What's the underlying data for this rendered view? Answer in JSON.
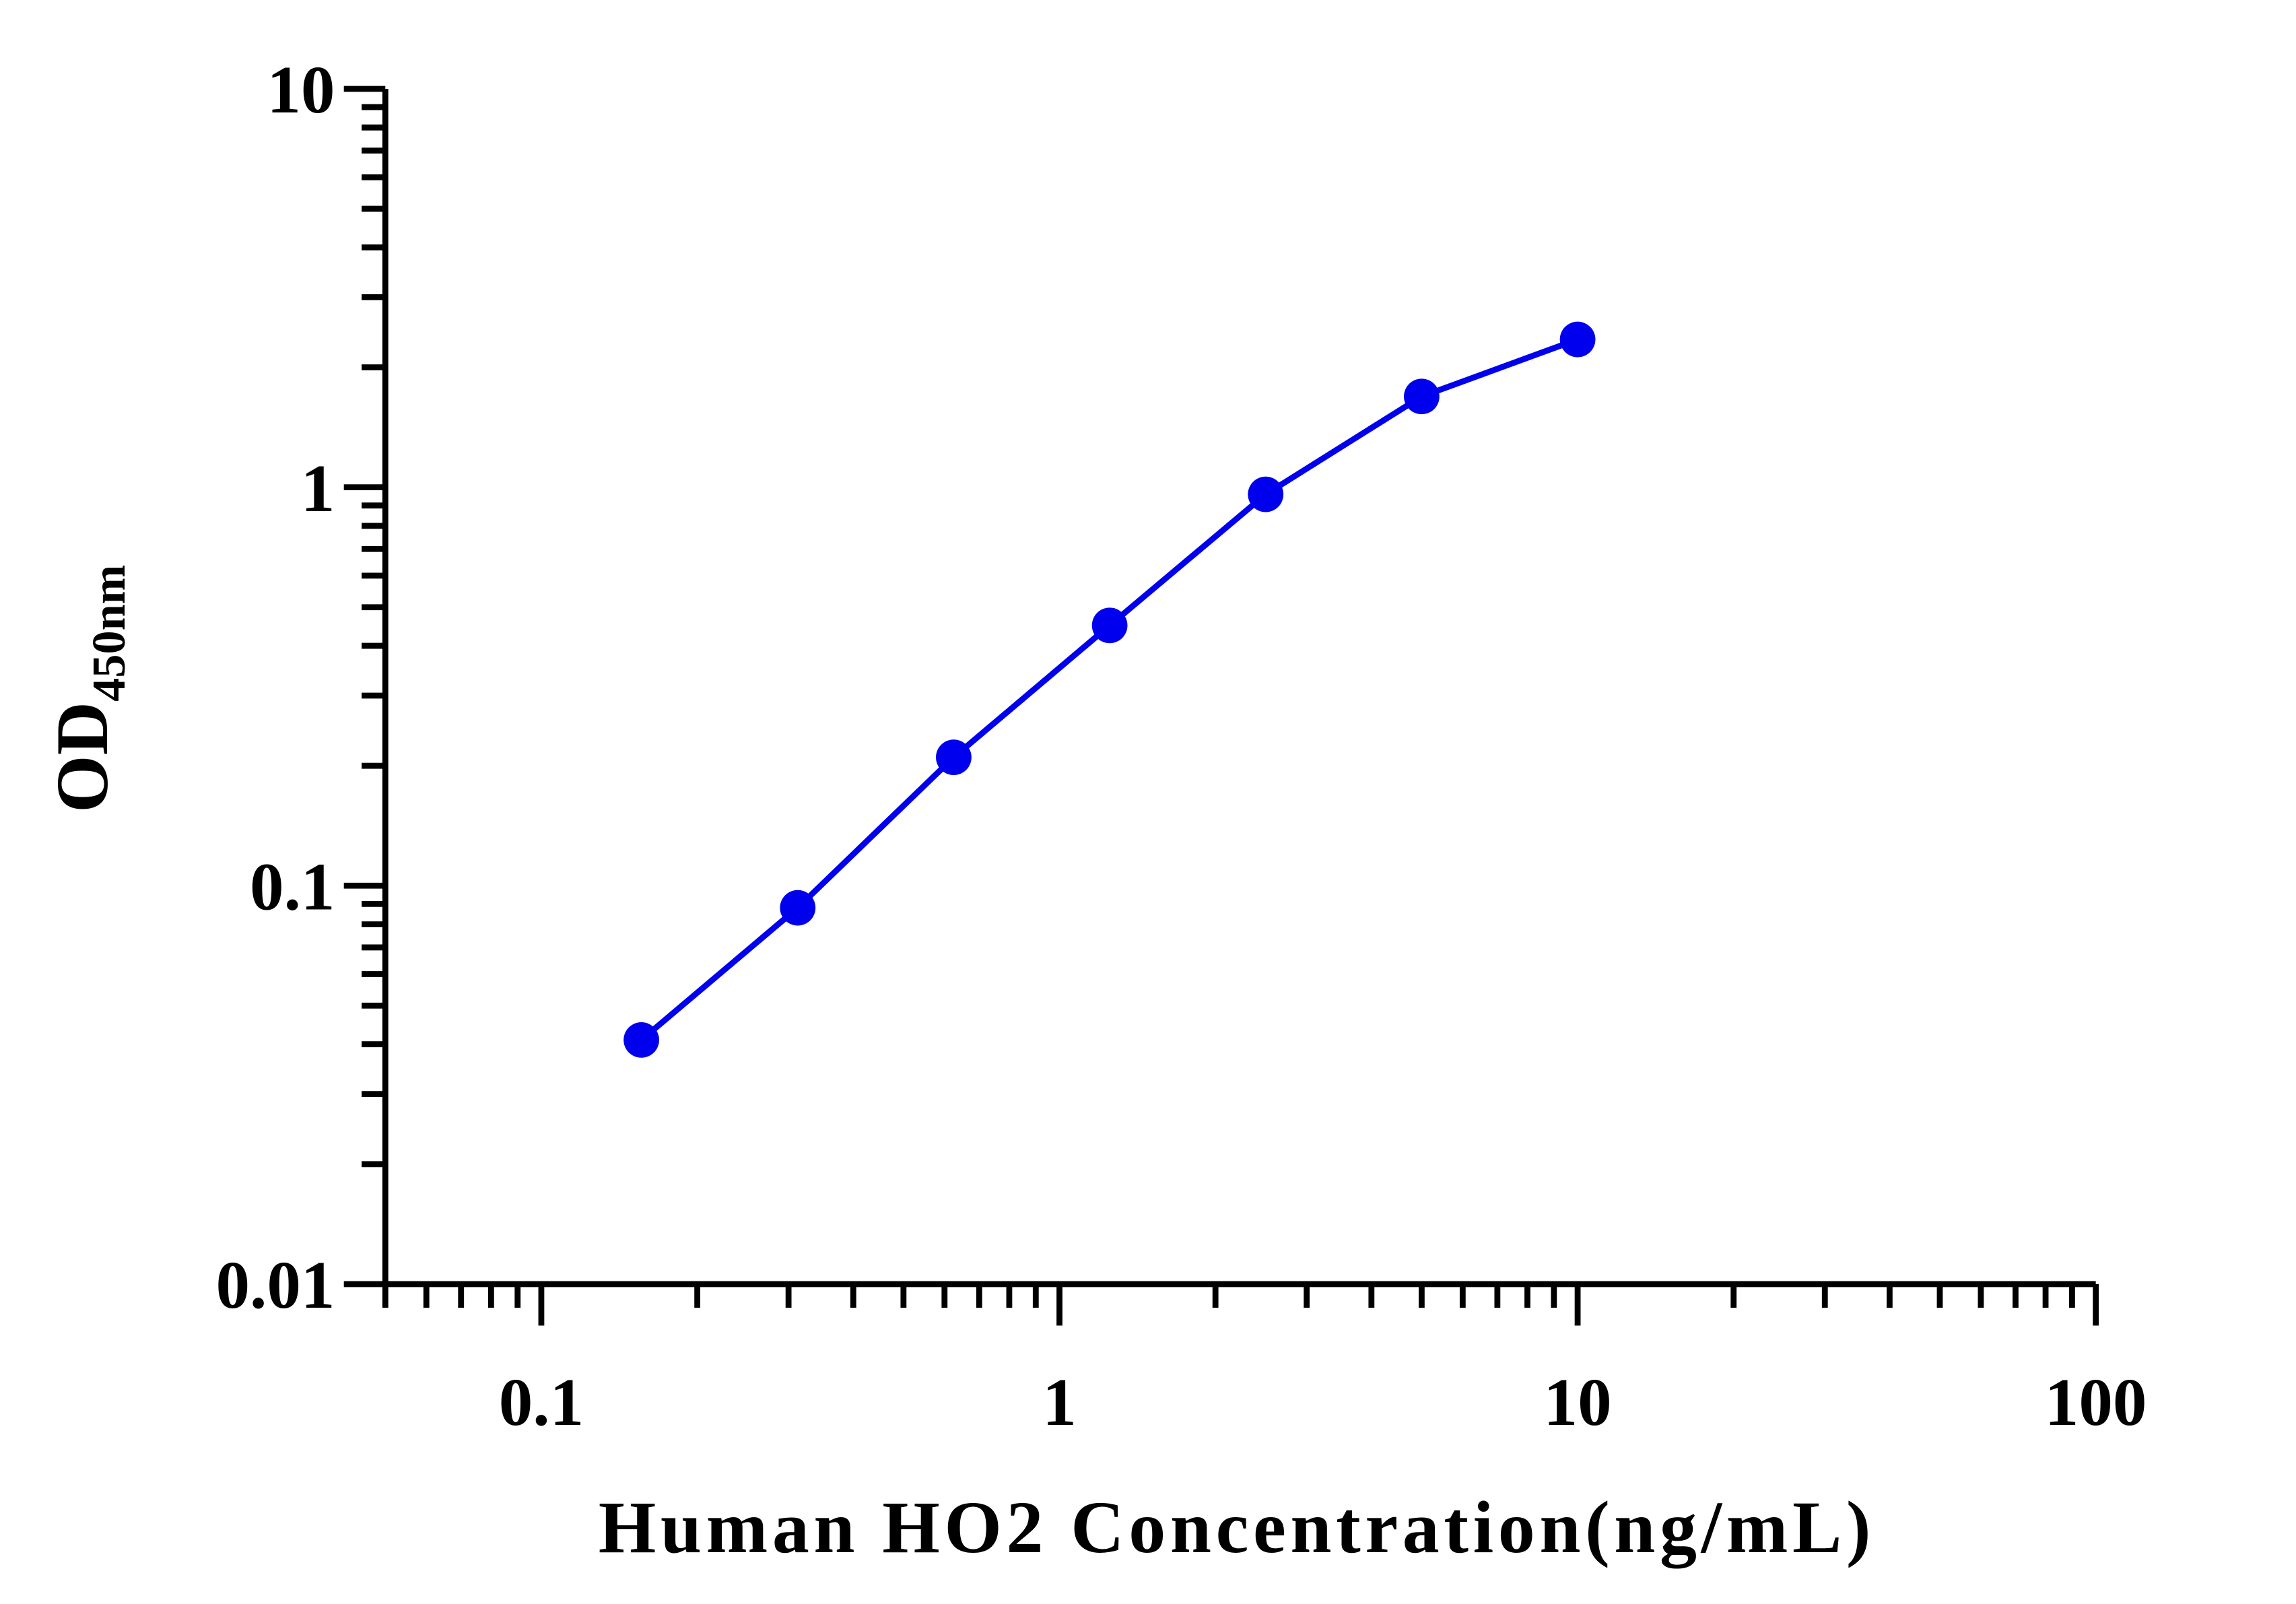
{
  "chart_data": {
    "type": "line",
    "xlabel": "Human HO2 Concentration(ng/mL)",
    "ylabel": "OD",
    "ylabel_subscript": "450nm",
    "xscale": "log",
    "yscale": "log",
    "xlim": [
      0.05,
      100
    ],
    "ylim": [
      0.01,
      10
    ],
    "xticks": [
      {
        "v": 0.1,
        "label": "0.1"
      },
      {
        "v": 1,
        "label": "1"
      },
      {
        "v": 10,
        "label": "10"
      },
      {
        "v": 100,
        "label": "100"
      }
    ],
    "yticks": [
      {
        "v": 0.01,
        "label": "0.01"
      },
      {
        "v": 0.1,
        "label": "0.1"
      },
      {
        "v": 1,
        "label": "1"
      },
      {
        "v": 10,
        "label": "10"
      }
    ],
    "grid": false,
    "series": [
      {
        "color": "#0000ee",
        "x": [
          0.156,
          0.3125,
          0.625,
          1.25,
          2.5,
          5,
          10
        ],
        "y": [
          0.041,
          0.088,
          0.21,
          0.45,
          0.96,
          1.69,
          2.35
        ]
      }
    ]
  }
}
